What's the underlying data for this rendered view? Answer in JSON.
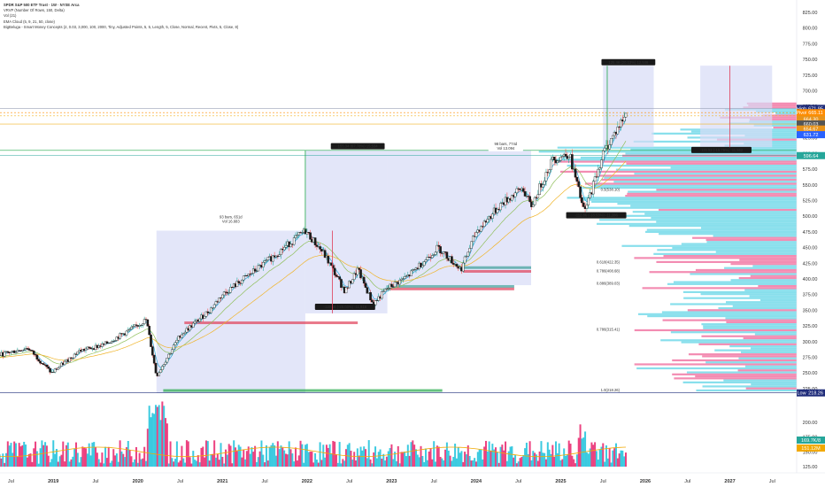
{
  "legend": {
    "line1": "SPDR S&P 500 ETF Trust · 1W · NYSE Arca",
    "line2": "VRVP (Number Of Rows, 150, Delta)",
    "line3": "Vol (21)",
    "line4": "EMA Cloud (5, 9, 21, 50, close)",
    "line5": "BigBeluga - Smart Money Concepts (2, 0.03, 3,000, 100, 2000, Tiny, Adjusted Points, 5, 5, Length, 5, Close, Normal, Recent, Pivts, 5, Close, 8)"
  },
  "chart_data": {
    "type": "candlestick",
    "title": "SPDR S&P 500 ETF Trust · 1W · NYSE Arca",
    "ylim": [
      215,
      825
    ],
    "y_ticks": [
      825,
      800,
      775,
      750,
      725,
      700,
      675,
      650,
      625,
      600,
      575,
      550,
      525,
      500,
      475,
      450,
      425,
      400,
      375,
      350,
      325,
      300,
      275,
      250,
      225
    ],
    "volume_ticks": [
      200,
      175,
      150,
      125
    ],
    "x_ticks": [
      {
        "label": "Jul",
        "date": 2018.5
      },
      {
        "label": "2019",
        "date": 2019.0
      },
      {
        "label": "Jul",
        "date": 2019.5
      },
      {
        "label": "2020",
        "date": 2020.0
      },
      {
        "label": "Jul",
        "date": 2020.5
      },
      {
        "label": "2021",
        "date": 2021.0
      },
      {
        "label": "Jul",
        "date": 2021.5
      },
      {
        "label": "2022",
        "date": 2022.0
      },
      {
        "label": "Jul",
        "date": 2022.5
      },
      {
        "label": "2023",
        "date": 2023.0
      },
      {
        "label": "Jul",
        "date": 2023.5
      },
      {
        "label": "2024",
        "date": 2024.0
      },
      {
        "label": "Jul",
        "date": 2024.5
      },
      {
        "label": "2025",
        "date": 2025.0
      },
      {
        "label": "Jul",
        "date": 2025.5
      },
      {
        "label": "2026",
        "date": 2026.0
      },
      {
        "label": "Jul",
        "date": 2026.5
      },
      {
        "label": "2027",
        "date": 2027.0
      },
      {
        "label": "Jul",
        "date": 2027.5
      }
    ],
    "price_path": [
      [
        2018.25,
        275
      ],
      [
        2018.7,
        290
      ],
      [
        2018.98,
        250
      ],
      [
        2019.3,
        285
      ],
      [
        2019.6,
        295
      ],
      [
        2019.95,
        322
      ],
      [
        2020.1,
        335
      ],
      [
        2020.22,
        245
      ],
      [
        2020.5,
        310
      ],
      [
        2020.85,
        350
      ],
      [
        2021.0,
        375
      ],
      [
        2021.5,
        425
      ],
      [
        2021.98,
        477
      ],
      [
        2022.2,
        440
      ],
      [
        2022.45,
        380
      ],
      [
        2022.6,
        415
      ],
      [
        2022.78,
        360
      ],
      [
        2022.95,
        385
      ],
      [
        2023.2,
        405
      ],
      [
        2023.55,
        450
      ],
      [
        2023.82,
        415
      ],
      [
        2024.0,
        475
      ],
      [
        2024.3,
        520
      ],
      [
        2024.55,
        545
      ],
      [
        2024.65,
        515
      ],
      [
        2024.9,
        590
      ],
      [
        2025.1,
        600
      ],
      [
        2025.28,
        505
      ],
      [
        2025.5,
        600
      ],
      [
        2025.78,
        665
      ]
    ],
    "price_tags": [
      {
        "label": "High",
        "value": "671.95",
        "price": 671.95,
        "color": "#1f2c7a"
      },
      {
        "label": "Pivot",
        "value": "665.11",
        "price": 665.11,
        "color": "#ff8c00"
      },
      {
        "label": "",
        "value": "664.30",
        "price": 654.5,
        "color": "#e8931a"
      },
      {
        "label": "",
        "value": "660.03",
        "price": 647,
        "color": "#555555"
      },
      {
        "label": "",
        "value": "654.67",
        "price": 639,
        "color": "#e8931a"
      },
      {
        "label": "",
        "value": "631.72",
        "price": 630,
        "color": "#2962ff"
      },
      {
        "label": "",
        "value": "596.64",
        "price": 596.6,
        "color": "#26a69a"
      },
      {
        "label": "Low",
        "value": "218.26",
        "price": 218.26,
        "color": "#1f2c7a"
      }
    ],
    "volume_tags": [
      {
        "value": "169.7K/8",
        "color": "#26a69a"
      },
      {
        "value": "151.12M",
        "color": "#f2a900"
      }
    ],
    "annotations": [
      {
        "text": "93 bars, 651d",
        "sub": "Vol 16.683"
      },
      {
        "text": "155.34 (67.78%) 15,534"
      },
      {
        "text": "-119.16 (-25.03%) -11,916"
      },
      {
        "text": "98 bars, 774d",
        "sub": "Vol 13.094"
      },
      {
        "text": "-112.86 (-18.53%) -11,286"
      },
      {
        "text": "125.46 (20.13%) 12,546"
      },
      {
        "text": "-115.52 (-15.79%) -11,552"
      }
    ],
    "fib_labels": [
      "0.5(538.10)",
      "0.618(422.35)",
      "0.786(408.68)",
      "0.786(315.41)",
      "0.886(389.03)",
      "1.0(218.26)"
    ]
  },
  "colors": {
    "up": "#26a69a",
    "down": "#ef5350",
    "box_fill": "#d7dcf7",
    "green_line": "#23a84a",
    "red_line": "#e03e58",
    "profile_up": "#27c4dd",
    "profile_down": "#ea2e72"
  }
}
